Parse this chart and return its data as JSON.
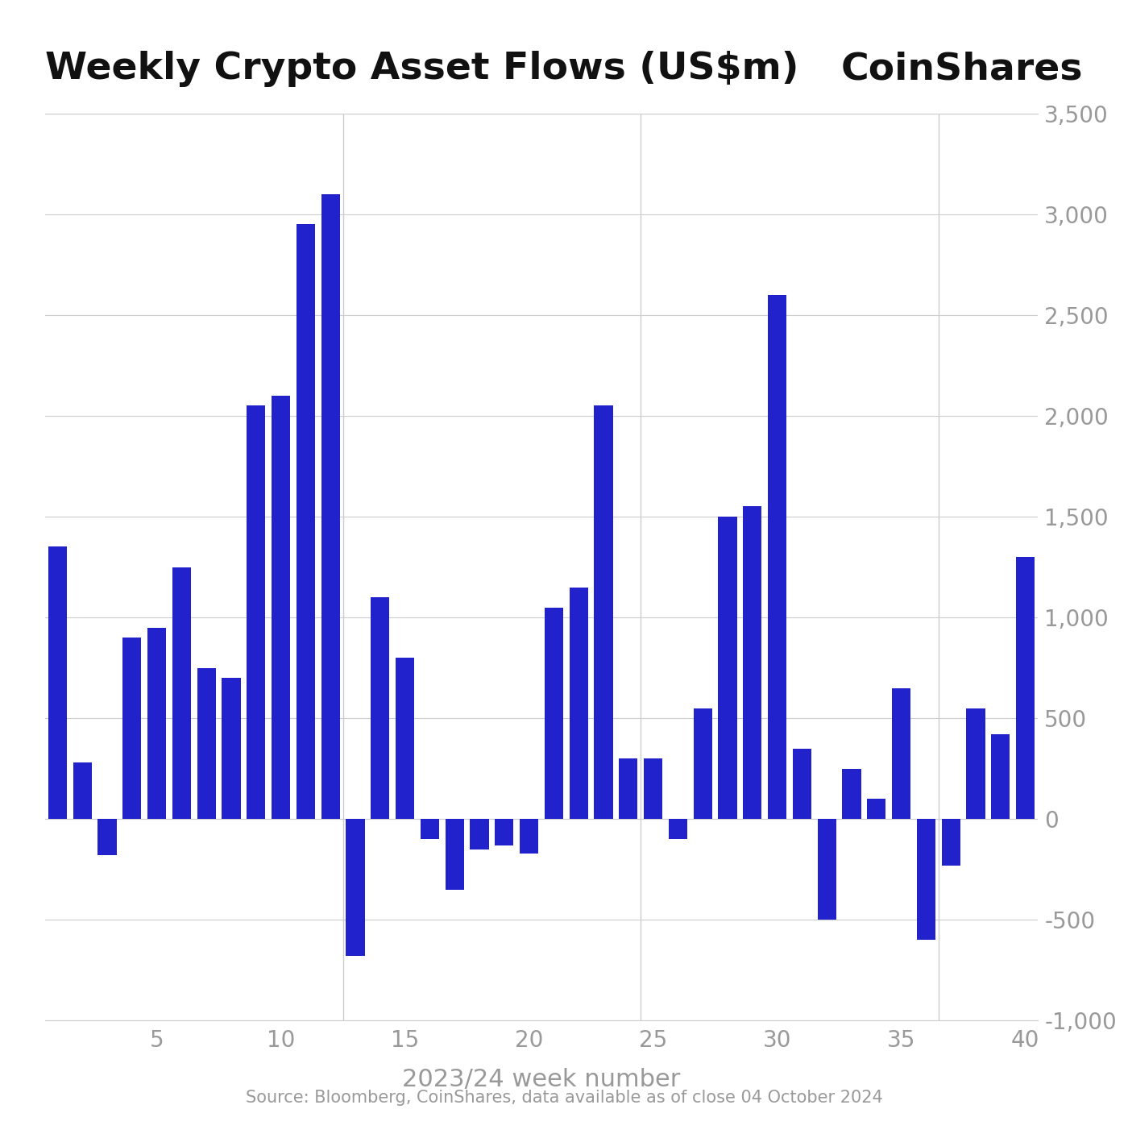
{
  "title": "Weekly Crypto Asset Flows (US$m)",
  "coinshares_label": "CoinShares",
  "xlabel": "2023/24 week number",
  "source_text": "Source: Bloomberg, CoinShares, data available as of close 04 October 2024",
  "bar_color": "#2222cc",
  "background_color": "#ffffff",
  "grid_color": "#cccccc",
  "axis_label_color": "#999999",
  "title_color": "#111111",
  "weeks": [
    1,
    2,
    3,
    4,
    5,
    6,
    7,
    8,
    9,
    10,
    11,
    12,
    13,
    14,
    15,
    16,
    17,
    18,
    19,
    20,
    21,
    22,
    23,
    24,
    25,
    26,
    27,
    28,
    29,
    30,
    31,
    32,
    33,
    34,
    35,
    36,
    37,
    38,
    39,
    40
  ],
  "values": [
    1350,
    280,
    -180,
    900,
    950,
    1250,
    750,
    700,
    2050,
    2100,
    2950,
    3100,
    -680,
    1100,
    800,
    -100,
    -350,
    -150,
    -130,
    -170,
    1050,
    1150,
    2050,
    300,
    300,
    -100,
    550,
    1500,
    1550,
    2600,
    350,
    -500,
    250,
    100,
    650,
    -600,
    -230,
    550,
    420,
    1300
  ],
  "ylim": [
    -1000,
    3500
  ],
  "yticks": [
    -1000,
    -500,
    0,
    500,
    1000,
    1500,
    2000,
    2500,
    3000,
    3500
  ],
  "xticks": [
    5,
    10,
    15,
    20,
    25,
    30,
    35,
    40
  ],
  "vlines": [
    12.5,
    24.5,
    36.5
  ],
  "title_fontsize": 34,
  "coinshares_fontsize": 34,
  "axis_label_fontsize": 22,
  "tick_fontsize": 20,
  "source_fontsize": 15
}
